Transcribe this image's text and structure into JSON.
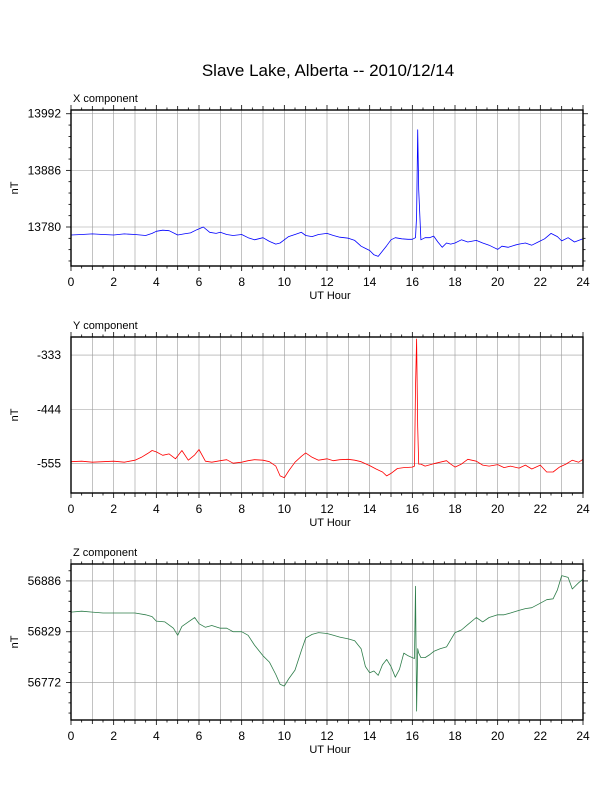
{
  "title": "Slave Lake, Alberta -- 2010/12/14",
  "chart_data": [
    {
      "type": "line",
      "title": "X component",
      "xlabel": "UT Hour",
      "ylabel": "nT",
      "xlim": [
        0,
        24
      ],
      "ylim": [
        13707,
        13999
      ],
      "x_ticks": [
        0,
        2,
        4,
        6,
        8,
        10,
        12,
        14,
        16,
        18,
        20,
        22,
        24
      ],
      "y_ticks": [
        13780,
        13886,
        13992
      ],
      "grid": true,
      "color": "#0000ff",
      "series": [
        {
          "x": [
            0,
            0.5,
            1,
            1.5,
            2,
            2.5,
            3,
            3.5,
            3.8,
            4,
            4.3,
            4.6,
            5,
            5.3,
            5.6,
            5.9,
            6.2,
            6.5,
            6.8,
            7,
            7.3,
            7.6,
            8,
            8.3,
            8.6,
            9,
            9.3,
            9.6,
            9.8,
            10,
            10.2,
            10.5,
            10.8,
            11,
            11.3,
            11.6,
            12,
            12.3,
            12.6,
            13,
            13.3,
            13.6,
            13.8,
            14,
            14.2,
            14.4,
            14.6,
            14.8,
            15,
            15.2,
            15.5,
            15.8,
            16,
            16.15,
            16.2,
            16.25,
            16.3,
            16.4,
            16.6,
            16.8,
            17,
            17.2,
            17.4,
            17.6,
            17.8,
            18,
            18.3,
            18.6,
            19,
            19.3,
            19.6,
            19.8,
            20,
            20.2,
            20.5,
            20.8,
            21,
            21.3,
            21.6,
            21.9,
            22.2,
            22.5,
            22.8,
            23,
            23.3,
            23.6,
            24
          ],
          "y": [
            13765,
            13766,
            13767,
            13766,
            13765,
            13767,
            13766,
            13764,
            13768,
            13772,
            13774,
            13773,
            13765,
            13767,
            13769,
            13775,
            13780,
            13770,
            13768,
            13770,
            13766,
            13764,
            13766,
            13760,
            13756,
            13760,
            13753,
            13748,
            13750,
            13756,
            13762,
            13766,
            13770,
            13764,
            13762,
            13766,
            13768,
            13764,
            13761,
            13759,
            13755,
            13744,
            13740,
            13736,
            13728,
            13725,
            13735,
            13745,
            13756,
            13760,
            13758,
            13757,
            13757,
            13760,
            13800,
            13962,
            13850,
            13756,
            13760,
            13760,
            13763,
            13752,
            13742,
            13750,
            13748,
            13750,
            13756,
            13752,
            13755,
            13750,
            13746,
            13742,
            13738,
            13744,
            13742,
            13746,
            13748,
            13750,
            13746,
            13752,
            13758,
            13768,
            13762,
            13754,
            13760,
            13752,
            13758
          ]
        }
      ]
    },
    {
      "type": "line",
      "title": "Y component",
      "xlabel": "UT Hour",
      "ylabel": "nT",
      "xlim": [
        0,
        24
      ],
      "ylim": [
        -615,
        -296
      ],
      "x_ticks": [
        0,
        2,
        4,
        6,
        8,
        10,
        12,
        14,
        16,
        18,
        20,
        22,
        24
      ],
      "y_ticks": [
        -333,
        -444,
        -555
      ],
      "grid": true,
      "color": "#ff0000",
      "series": [
        {
          "x": [
            0,
            0.5,
            1,
            1.5,
            2,
            2.5,
            3,
            3.3,
            3.6,
            3.8,
            4,
            4.3,
            4.6,
            4.9,
            5.2,
            5.5,
            5.8,
            6,
            6.3,
            6.6,
            7,
            7.3,
            7.6,
            8,
            8.3,
            8.6,
            9,
            9.3,
            9.6,
            9.8,
            10,
            10.2,
            10.5,
            10.8,
            11,
            11.3,
            11.6,
            12,
            12.3,
            12.6,
            13,
            13.3,
            13.6,
            14,
            14.3,
            14.6,
            14.8,
            15,
            15.3,
            15.6,
            16,
            16.1,
            16.15,
            16.2,
            16.25,
            16.3,
            16.4,
            16.6,
            17,
            17.3,
            17.6,
            17.8,
            18,
            18.3,
            18.6,
            19,
            19.3,
            19.6,
            20,
            20.3,
            20.6,
            21,
            21.3,
            21.6,
            22,
            22.3,
            22.6,
            22.9,
            23.2,
            23.5,
            23.8,
            24
          ],
          "y": [
            -551,
            -550,
            -552,
            -551,
            -550,
            -552,
            -548,
            -542,
            -534,
            -528,
            -531,
            -538,
            -535,
            -545,
            -528,
            -548,
            -537,
            -526,
            -550,
            -552,
            -549,
            -547,
            -554,
            -552,
            -549,
            -547,
            -548,
            -551,
            -560,
            -580,
            -584,
            -570,
            -552,
            -540,
            -533,
            -542,
            -548,
            -545,
            -549,
            -547,
            -546,
            -548,
            -551,
            -559,
            -566,
            -572,
            -580,
            -575,
            -565,
            -563,
            -562,
            -560,
            -400,
            -300,
            -480,
            -556,
            -556,
            -560,
            -555,
            -552,
            -549,
            -556,
            -562,
            -556,
            -546,
            -550,
            -558,
            -560,
            -557,
            -563,
            -560,
            -564,
            -558,
            -566,
            -558,
            -572,
            -572,
            -562,
            -556,
            -548,
            -552,
            -546
          ]
        }
      ]
    },
    {
      "type": "line",
      "title": "Z component",
      "xlabel": "UT Hour",
      "ylabel": "nT",
      "xlim": [
        0,
        24
      ],
      "ylim": [
        56730,
        56905
      ],
      "x_ticks": [
        0,
        2,
        4,
        6,
        8,
        10,
        12,
        14,
        16,
        18,
        20,
        22,
        24
      ],
      "y_ticks": [
        56772,
        56829,
        56886
      ],
      "grid": true,
      "color": "#2e7d4a",
      "series": [
        {
          "x": [
            0,
            0.5,
            1,
            1.5,
            2,
            2.5,
            3,
            3.5,
            3.8,
            4,
            4.4,
            4.8,
            5,
            5.2,
            5.5,
            5.8,
            6,
            6.3,
            6.6,
            7,
            7.3,
            7.6,
            8,
            8.3,
            8.6,
            9,
            9.3,
            9.6,
            9.8,
            10,
            10.2,
            10.5,
            10.8,
            11,
            11.3,
            11.6,
            12,
            12.3,
            12.6,
            13,
            13.3,
            13.6,
            13.8,
            14,
            14.2,
            14.4,
            14.6,
            14.8,
            15,
            15.2,
            15.4,
            15.6,
            15.8,
            16,
            16.1,
            16.15,
            16.2,
            16.25,
            16.3,
            16.4,
            16.6,
            16.8,
            17,
            17.3,
            17.6,
            17.8,
            18,
            18.3,
            18.6,
            19,
            19.3,
            19.6,
            20,
            20.3,
            20.6,
            21,
            21.3,
            21.6,
            22,
            22.3,
            22.6,
            22.8,
            23,
            23.3,
            23.5,
            23.8,
            24
          ],
          "y": [
            56851,
            56852,
            56851,
            56850,
            56850,
            56850,
            56850,
            56848,
            56846,
            56841,
            56840,
            56833,
            56825,
            56835,
            56840,
            56845,
            56838,
            56834,
            56836,
            56833,
            56833,
            56829,
            56829,
            56825,
            56814,
            56802,
            56795,
            56781,
            56770,
            56768,
            56776,
            56786,
            56808,
            56822,
            56826,
            56828,
            56827,
            56825,
            56823,
            56821,
            56819,
            56810,
            56790,
            56783,
            56785,
            56780,
            56792,
            56798,
            56790,
            56778,
            56787,
            56805,
            56802,
            56800,
            56799,
            56880,
            56740,
            56810,
            56805,
            56800,
            56800,
            56803,
            56807,
            56810,
            56812,
            56820,
            56828,
            56831,
            56837,
            56845,
            56840,
            56845,
            56848,
            56848,
            56850,
            56853,
            56855,
            56856,
            56861,
            56865,
            56866,
            56876,
            56892,
            56890,
            56877,
            56884,
            56888
          ]
        }
      ]
    }
  ]
}
